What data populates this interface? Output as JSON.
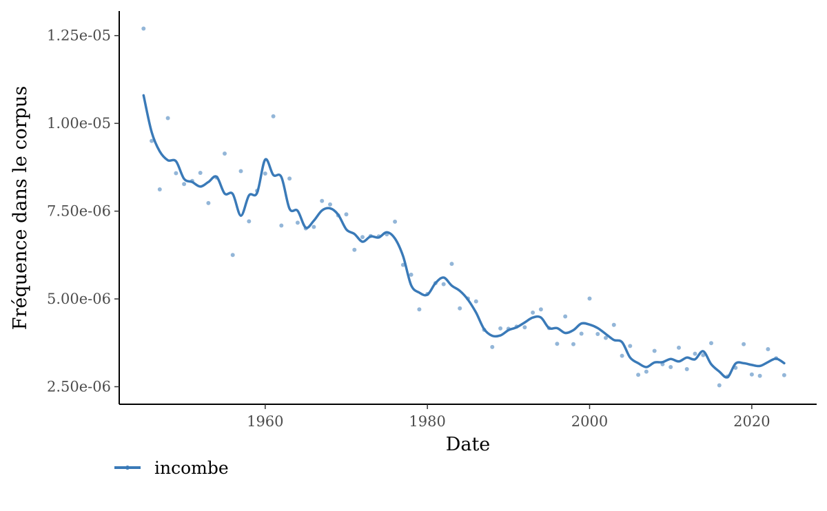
{
  "chart_data": {
    "type": "scatter",
    "xlabel": "Date",
    "ylabel": "Fréquence dans le corpus",
    "xlim": [
      1942,
      2028
    ],
    "ylim": [
      2e-06,
      1.32e-05
    ],
    "x_ticks": [
      1960,
      1980,
      2000,
      2020
    ],
    "y_ticks": [
      2.5e-06,
      5e-06,
      7.5e-06,
      1e-05,
      1.25e-05
    ],
    "x_tick_labels": [
      "1960",
      "1980",
      "2000",
      "2020"
    ],
    "y_tick_labels": [
      "2.50e-06",
      "5.00e-06",
      "7.50e-06",
      "1.00e-05",
      "1.25e-05"
    ],
    "grid": false,
    "legend_position": "bottom-left",
    "series": [
      {
        "name": "incombe",
        "color": "#3a7ab8",
        "points": [
          [
            1945,
            1.27e-05
          ],
          [
            1946,
            9.5e-06
          ],
          [
            1947,
            8.12e-06
          ],
          [
            1948,
            1.015e-05
          ],
          [
            1949,
            8.58e-06
          ],
          [
            1950,
            8.27e-06
          ],
          [
            1951,
            8.36e-06
          ],
          [
            1952,
            8.59e-06
          ],
          [
            1953,
            7.73e-06
          ],
          [
            1954,
            8.46e-06
          ],
          [
            1955,
            9.14e-06
          ],
          [
            1956,
            6.25e-06
          ],
          [
            1957,
            8.64e-06
          ],
          [
            1958,
            7.21e-06
          ],
          [
            1959,
            8.08e-06
          ],
          [
            1960,
            8.57e-06
          ],
          [
            1961,
            1.02e-05
          ],
          [
            1962,
            7.09e-06
          ],
          [
            1963,
            8.43e-06
          ],
          [
            1964,
            7.17e-06
          ],
          [
            1965,
            7.01e-06
          ],
          [
            1966,
            7.05e-06
          ],
          [
            1967,
            7.79e-06
          ],
          [
            1968,
            7.69e-06
          ],
          [
            1969,
            7.38e-06
          ],
          [
            1970,
            7.41e-06
          ],
          [
            1971,
            6.4e-06
          ],
          [
            1972,
            6.76e-06
          ],
          [
            1973,
            6.79e-06
          ],
          [
            1974,
            6.78e-06
          ],
          [
            1975,
            6.84e-06
          ],
          [
            1976,
            7.2e-06
          ],
          [
            1977,
            5.97e-06
          ],
          [
            1978,
            5.69e-06
          ],
          [
            1979,
            4.7e-06
          ],
          [
            1980,
            5.14e-06
          ],
          [
            1981,
            5.45e-06
          ],
          [
            1982,
            5.42e-06
          ],
          [
            1983,
            6e-06
          ],
          [
            1984,
            4.73e-06
          ],
          [
            1985,
            5.01e-06
          ],
          [
            1986,
            4.93e-06
          ],
          [
            1987,
            4.12e-06
          ],
          [
            1988,
            3.63e-06
          ],
          [
            1989,
            4.16e-06
          ],
          [
            1990,
            4.15e-06
          ],
          [
            1991,
            4.21e-06
          ],
          [
            1992,
            4.19e-06
          ],
          [
            1993,
            4.61e-06
          ],
          [
            1994,
            4.7e-06
          ],
          [
            1995,
            4.17e-06
          ],
          [
            1996,
            3.72e-06
          ],
          [
            1997,
            4.5e-06
          ],
          [
            1998,
            3.71e-06
          ],
          [
            1999,
            4.01e-06
          ],
          [
            2000,
            5.01e-06
          ],
          [
            2001,
            4e-06
          ],
          [
            2002,
            3.89e-06
          ],
          [
            2003,
            4.26e-06
          ],
          [
            2004,
            3.38e-06
          ],
          [
            2005,
            3.66e-06
          ],
          [
            2006,
            2.84e-06
          ],
          [
            2007,
            2.93e-06
          ],
          [
            2008,
            3.52e-06
          ],
          [
            2009,
            3.14e-06
          ],
          [
            2010,
            3.06e-06
          ],
          [
            2011,
            3.61e-06
          ],
          [
            2012,
            3e-06
          ],
          [
            2013,
            3.44e-06
          ],
          [
            2014,
            3.4e-06
          ],
          [
            2015,
            3.74e-06
          ],
          [
            2016,
            2.54e-06
          ],
          [
            2017,
            2.79e-06
          ],
          [
            2018,
            3.04e-06
          ],
          [
            2019,
            3.71e-06
          ],
          [
            2020,
            2.85e-06
          ],
          [
            2021,
            2.81e-06
          ],
          [
            2022,
            3.57e-06
          ],
          [
            2023,
            3.31e-06
          ],
          [
            2024,
            2.83e-06
          ]
        ],
        "smooth_line": [
          [
            1945,
            1.08e-05
          ],
          [
            1946,
            9.75e-06
          ],
          [
            1947,
            9.2e-06
          ],
          [
            1948,
            8.95e-06
          ],
          [
            1949,
            8.92e-06
          ],
          [
            1950,
            8.42e-06
          ],
          [
            1951,
            8.33e-06
          ],
          [
            1952,
            8.2e-06
          ],
          [
            1953,
            8.33e-06
          ],
          [
            1954,
            8.48e-06
          ],
          [
            1955,
            8e-06
          ],
          [
            1956,
            7.99e-06
          ],
          [
            1957,
            7.37e-06
          ],
          [
            1958,
            7.95e-06
          ],
          [
            1959,
            8.02e-06
          ],
          [
            1960,
            8.97e-06
          ],
          [
            1961,
            8.53e-06
          ],
          [
            1962,
            8.47e-06
          ],
          [
            1963,
            7.57e-06
          ],
          [
            1964,
            7.51e-06
          ],
          [
            1965,
            7.03e-06
          ],
          [
            1966,
            7.23e-06
          ],
          [
            1967,
            7.52e-06
          ],
          [
            1968,
            7.58e-06
          ],
          [
            1969,
            7.4e-06
          ],
          [
            1970,
            6.98e-06
          ],
          [
            1971,
            6.85e-06
          ],
          [
            1972,
            6.63e-06
          ],
          [
            1973,
            6.78e-06
          ],
          [
            1974,
            6.75e-06
          ],
          [
            1975,
            6.9e-06
          ],
          [
            1976,
            6.72e-06
          ],
          [
            1977,
            6.22e-06
          ],
          [
            1978,
            5.39e-06
          ],
          [
            1979,
            5.18e-06
          ],
          [
            1980,
            5.12e-06
          ],
          [
            1981,
            5.45e-06
          ],
          [
            1982,
            5.61e-06
          ],
          [
            1983,
            5.38e-06
          ],
          [
            1984,
            5.23e-06
          ],
          [
            1985,
            4.98e-06
          ],
          [
            1986,
            4.61e-06
          ],
          [
            1987,
            4.14e-06
          ],
          [
            1988,
            3.95e-06
          ],
          [
            1989,
            3.96e-06
          ],
          [
            1990,
            4.11e-06
          ],
          [
            1991,
            4.19e-06
          ],
          [
            1992,
            4.33e-06
          ],
          [
            1993,
            4.47e-06
          ],
          [
            1994,
            4.47e-06
          ],
          [
            1995,
            4.17e-06
          ],
          [
            1996,
            4.17e-06
          ],
          [
            1997,
            4.03e-06
          ],
          [
            1998,
            4.11e-06
          ],
          [
            1999,
            4.3e-06
          ],
          [
            2000,
            4.27e-06
          ],
          [
            2001,
            4.17e-06
          ],
          [
            2002,
            4e-06
          ],
          [
            2003,
            3.83e-06
          ],
          [
            2004,
            3.77e-06
          ],
          [
            2005,
            3.33e-06
          ],
          [
            2006,
            3.17e-06
          ],
          [
            2007,
            3.06e-06
          ],
          [
            2008,
            3.19e-06
          ],
          [
            2009,
            3.2e-06
          ],
          [
            2010,
            3.29e-06
          ],
          [
            2011,
            3.22e-06
          ],
          [
            2012,
            3.33e-06
          ],
          [
            2013,
            3.28e-06
          ],
          [
            2014,
            3.51e-06
          ],
          [
            2015,
            3.14e-06
          ],
          [
            2016,
            2.93e-06
          ],
          [
            2017,
            2.77e-06
          ],
          [
            2018,
            3.16e-06
          ],
          [
            2019,
            3.17e-06
          ],
          [
            2020,
            3.12e-06
          ],
          [
            2021,
            3.09e-06
          ],
          [
            2022,
            3.2e-06
          ],
          [
            2023,
            3.3e-06
          ],
          [
            2024,
            3.17e-06
          ]
        ]
      }
    ]
  }
}
